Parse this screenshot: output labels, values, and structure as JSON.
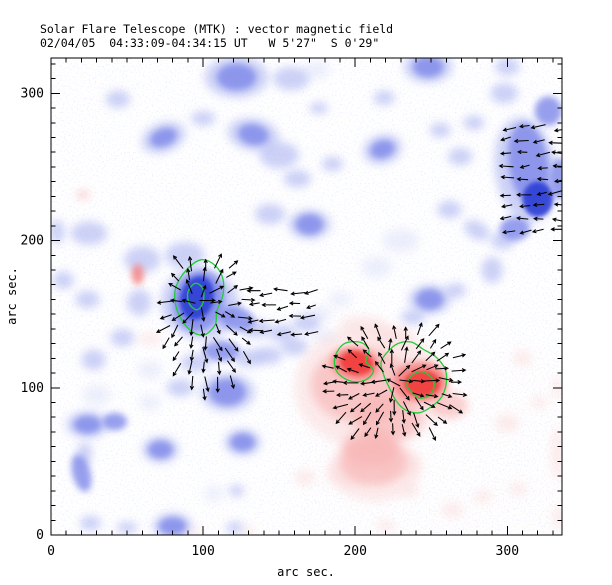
{
  "title": {
    "line1": "Solar Flare Telescope (MTK) : vector magnetic field",
    "line2": "02/04/05  04:33:09-04:34:15 UT   W 5'27\"  S 0'29\""
  },
  "axes": {
    "xlabel": "arc sec.",
    "ylabel": "arc sec.",
    "xticks": [
      0,
      100,
      200,
      300
    ],
    "yticks": [
      0,
      100,
      200,
      300
    ],
    "xlim": [
      0,
      336
    ],
    "ylim": [
      0,
      324
    ],
    "minor_tick_step": 10,
    "major_tick_step": 100
  },
  "palette": {
    "background": "#ffffff",
    "axis": "#000000",
    "contour_green": "#22cc38",
    "vector_black": "#000000",
    "blue": {
      "1": "#dde1f9",
      "2": "#aeb6f1",
      "3": "#7e88e9",
      "4": "#2f3fd5"
    },
    "red": {
      "1": "#fbdada",
      "2": "#f8b2b2",
      "3": "#f47c7c",
      "4": "#f23c3c"
    },
    "opacity": {
      "1": 0.55,
      "2": 0.62,
      "3": 0.8,
      "4": 0.92
    }
  },
  "chart_data": {
    "type": "heatmap",
    "description": "vector magnetogram: blue and red field patches, green contours around strong-field cores, black transverse-field vectors",
    "units": "arcsec",
    "tone_scale": "1=faint 2=light 3=medium 4=core",
    "blue_regions": [
      [
        122,
        311,
        13,
        9,
        0,
        3
      ],
      [
        122,
        311,
        21,
        14,
        0,
        2
      ],
      [
        44,
        296,
        8,
        6,
        0,
        2
      ],
      [
        74,
        270,
        9,
        6,
        20,
        3
      ],
      [
        74,
        270,
        15,
        10,
        20,
        2
      ],
      [
        133,
        272,
        10,
        7,
        -10,
        3
      ],
      [
        133,
        272,
        17,
        11,
        -10,
        2
      ],
      [
        100,
        283,
        8,
        5,
        0,
        2
      ],
      [
        150,
        258,
        13,
        9,
        0,
        2
      ],
      [
        162,
        242,
        9,
        6,
        0,
        2
      ],
      [
        144,
        218,
        10,
        7,
        0,
        2
      ],
      [
        170,
        211,
        9,
        7,
        0,
        3
      ],
      [
        170,
        211,
        14,
        10,
        0,
        2
      ],
      [
        185,
        252,
        7,
        5,
        0,
        2
      ],
      [
        218,
        262,
        8,
        6,
        15,
        3
      ],
      [
        218,
        262,
        13,
        10,
        15,
        2
      ],
      [
        248,
        318,
        10,
        7,
        0,
        3
      ],
      [
        248,
        318,
        16,
        11,
        0,
        2
      ],
      [
        219,
        297,
        7,
        5,
        0,
        2
      ],
      [
        176,
        290,
        6,
        4,
        0,
        2
      ],
      [
        158,
        310,
        12,
        8,
        0,
        2
      ],
      [
        175,
        316,
        8,
        6,
        0,
        1
      ],
      [
        256,
        275,
        7,
        5,
        0,
        2
      ],
      [
        278,
        280,
        7,
        5,
        0,
        2
      ],
      [
        300,
        318,
        8,
        6,
        0,
        2
      ],
      [
        314,
        252,
        13,
        28,
        8,
        3
      ],
      [
        312,
        248,
        20,
        36,
        8,
        2
      ],
      [
        320,
        228,
        10,
        12,
        0,
        4
      ],
      [
        327,
        288,
        9,
        10,
        0,
        3
      ],
      [
        305,
        208,
        10,
        8,
        0,
        3
      ],
      [
        334,
        242,
        6,
        14,
        0,
        3
      ],
      [
        298,
        300,
        9,
        7,
        0,
        2
      ],
      [
        290,
        180,
        7,
        9,
        0,
        2
      ],
      [
        269,
        257,
        8,
        6,
        0,
        2
      ],
      [
        262,
        221,
        8,
        6,
        0,
        2
      ],
      [
        280,
        207,
        9,
        6,
        -30,
        2
      ],
      [
        297,
        200,
        8,
        6,
        0,
        2
      ],
      [
        25,
        205,
        12,
        8,
        0,
        2
      ],
      [
        4,
        206,
        5,
        8,
        0,
        2
      ],
      [
        60,
        187,
        12,
        9,
        0,
        2
      ],
      [
        88,
        190,
        13,
        9,
        0,
        2
      ],
      [
        8,
        173,
        7,
        6,
        0,
        2
      ],
      [
        24,
        160,
        8,
        6,
        0,
        2
      ],
      [
        58,
        158,
        8,
        9,
        0,
        2
      ],
      [
        47,
        134,
        8,
        6,
        0,
        2
      ],
      [
        28,
        119,
        8,
        7,
        0,
        2
      ],
      [
        30,
        95,
        9,
        7,
        0,
        1
      ],
      [
        65,
        112,
        8,
        6,
        0,
        1
      ],
      [
        65,
        90,
        7,
        5,
        0,
        1
      ],
      [
        98,
        157,
        26,
        24,
        -15,
        2
      ],
      [
        97,
        159,
        17,
        21,
        -15,
        3
      ],
      [
        96,
        161,
        11,
        15,
        -15,
        4
      ],
      [
        122,
        147,
        12,
        8,
        -15,
        3
      ],
      [
        135,
        140,
        10,
        6,
        0,
        2
      ],
      [
        152,
        137,
        9,
        6,
        0,
        2
      ],
      [
        168,
        144,
        9,
        6,
        0,
        2
      ],
      [
        112,
        125,
        12,
        7,
        0,
        3
      ],
      [
        95,
        117,
        10,
        6,
        0,
        2
      ],
      [
        130,
        120,
        10,
        6,
        0,
        2
      ],
      [
        143,
        122,
        9,
        6,
        0,
        2
      ],
      [
        160,
        128,
        9,
        6,
        0,
        2
      ],
      [
        177,
        150,
        8,
        5,
        0,
        1
      ],
      [
        190,
        160,
        7,
        5,
        0,
        1
      ],
      [
        180,
        135,
        8,
        5,
        0,
        1
      ],
      [
        214,
        182,
        10,
        7,
        0,
        1
      ],
      [
        230,
        200,
        12,
        8,
        0,
        1
      ],
      [
        249,
        160,
        9,
        7,
        0,
        3
      ],
      [
        249,
        160,
        14,
        10,
        0,
        2
      ],
      [
        266,
        166,
        7,
        5,
        0,
        2
      ],
      [
        238,
        148,
        8,
        5,
        0,
        2
      ],
      [
        24,
        75,
        9,
        6,
        0,
        3
      ],
      [
        24,
        75,
        14,
        9,
        0,
        2
      ],
      [
        42,
        77,
        8,
        6,
        0,
        3
      ],
      [
        20,
        42,
        6,
        13,
        15,
        3
      ],
      [
        22,
        55,
        5,
        8,
        0,
        2
      ],
      [
        72,
        58,
        8,
        6,
        0,
        3
      ],
      [
        72,
        58,
        12,
        9,
        0,
        2
      ],
      [
        85,
        100,
        9,
        6,
        0,
        2
      ],
      [
        116,
        97,
        12,
        9,
        0,
        3
      ],
      [
        116,
        97,
        18,
        13,
        0,
        2
      ],
      [
        126,
        63,
        8,
        6,
        0,
        3
      ],
      [
        126,
        63,
        12,
        9,
        0,
        2
      ],
      [
        122,
        30,
        5,
        4,
        0,
        2
      ],
      [
        80,
        6,
        9,
        6,
        0,
        3
      ],
      [
        80,
        6,
        13,
        9,
        0,
        2
      ],
      [
        121,
        5,
        6,
        4,
        0,
        2
      ],
      [
        26,
        8,
        7,
        5,
        0,
        2
      ],
      [
        50,
        5,
        7,
        4,
        0,
        2
      ],
      [
        107,
        28,
        6,
        5,
        0,
        1
      ]
    ],
    "red_regions": [
      [
        210,
        100,
        50,
        42,
        0,
        1
      ],
      [
        213,
        45,
        30,
        22,
        0,
        1
      ],
      [
        204,
        102,
        33,
        26,
        0,
        2
      ],
      [
        212,
        50,
        22,
        16,
        0,
        2
      ],
      [
        200,
        116,
        16,
        11,
        -10,
        3
      ],
      [
        201,
        117,
        11,
        8,
        -10,
        4
      ],
      [
        243,
        104,
        18,
        14,
        0,
        3
      ],
      [
        244,
        103,
        12,
        9,
        0,
        4
      ],
      [
        222,
        80,
        22,
        16,
        0,
        2
      ],
      [
        210,
        60,
        18,
        13,
        0,
        2
      ],
      [
        262,
        88,
        12,
        9,
        0,
        2
      ],
      [
        196,
        42,
        14,
        9,
        0,
        1
      ],
      [
        228,
        48,
        15,
        9,
        0,
        1
      ],
      [
        205,
        142,
        16,
        7,
        0,
        1
      ],
      [
        225,
        136,
        13,
        6,
        0,
        1
      ],
      [
        167,
        39,
        7,
        5,
        0,
        1
      ],
      [
        218,
        39,
        6,
        4,
        0,
        1
      ],
      [
        236,
        30,
        6,
        4,
        0,
        1
      ],
      [
        264,
        17,
        7,
        5,
        0,
        1
      ],
      [
        284,
        26,
        6,
        4,
        0,
        1
      ],
      [
        300,
        76,
        8,
        6,
        0,
        1
      ],
      [
        307,
        31,
        6,
        4,
        0,
        1
      ],
      [
        220,
        6,
        6,
        4,
        0,
        1
      ],
      [
        333,
        55,
        4,
        18,
        0,
        1
      ],
      [
        334,
        12,
        4,
        8,
        0,
        1
      ],
      [
        333,
        100,
        3,
        8,
        0,
        1
      ],
      [
        310,
        120,
        6,
        5,
        0,
        1
      ],
      [
        321,
        90,
        5,
        4,
        0,
        1
      ],
      [
        57,
        177,
        4,
        7,
        0,
        3
      ],
      [
        21,
        231,
        4,
        3,
        0,
        2
      ],
      [
        65,
        133,
        8,
        4,
        0,
        1
      ],
      [
        95,
        2,
        5,
        3,
        0,
        1
      ],
      [
        130,
        2,
        5,
        3,
        0,
        1
      ]
    ],
    "green_contours": [
      {
        "points": [
          [
            99,
            187
          ],
          [
            108,
            183
          ],
          [
            113,
            174
          ],
          [
            113,
            163
          ],
          [
            109,
            152
          ],
          [
            108,
            143
          ],
          [
            101,
            136
          ],
          [
            93,
            138
          ],
          [
            86,
            146
          ],
          [
            82,
            156
          ],
          [
            82,
            168
          ],
          [
            89,
            180
          ]
        ]
      },
      {
        "points": [
          [
            95,
            171
          ],
          [
            100,
            167
          ],
          [
            100,
            158
          ],
          [
            96,
            153
          ],
          [
            91,
            157
          ],
          [
            90,
            165
          ]
        ]
      },
      {
        "points": [
          [
            193,
            130
          ],
          [
            203,
            131
          ],
          [
            209,
            126
          ],
          [
            207,
            118
          ],
          [
            212,
            112
          ],
          [
            208,
            106
          ],
          [
            200,
            104
          ],
          [
            192,
            107
          ],
          [
            187,
            113
          ],
          [
            187,
            122
          ]
        ]
      },
      {
        "points": [
          [
            221,
            124
          ],
          [
            228,
            130
          ],
          [
            237,
            131
          ],
          [
            245,
            126
          ],
          [
            253,
            121
          ],
          [
            259,
            113
          ],
          [
            260,
            104
          ],
          [
            257,
            94
          ],
          [
            250,
            87
          ],
          [
            242,
            83
          ],
          [
            233,
            85
          ],
          [
            227,
            91
          ],
          [
            223,
            99
          ],
          [
            219,
            108
          ],
          [
            217,
            117
          ]
        ]
      },
      {
        "points": [
          [
            237,
            108
          ],
          [
            243,
            111
          ],
          [
            249,
            108
          ],
          [
            252,
            102
          ],
          [
            249,
            95
          ],
          [
            242,
            93
          ],
          [
            237,
            97
          ],
          [
            234,
            102
          ]
        ]
      }
    ],
    "vector_clusters": [
      {
        "name": "negative-spot",
        "mode": "radial",
        "cx": 98,
        "cy": 158,
        "x0": 74,
        "x1": 132,
        "y0": 95,
        "y1": 192,
        "step": 9,
        "stepy": 9,
        "ex": 102,
        "ey": 145,
        "erx": 31,
        "ery": 51,
        "jitter": 14,
        "len": 13,
        "seed": 11
      },
      {
        "name": "central-band",
        "mode": "uniform",
        "angle": 185,
        "x0": 134,
        "x1": 178,
        "y0": 138,
        "y1": 165,
        "step": 9,
        "stepy": 9,
        "jitter": 14,
        "len": 12,
        "seed": 5
      },
      {
        "name": "positive-region",
        "mode": "radial",
        "cx": 226,
        "cy": 104,
        "x0": 182,
        "x1": 274,
        "y0": 62,
        "y1": 140,
        "step": 8.5,
        "stepy": 8.5,
        "ex": 227,
        "ey": 103,
        "erx": 47,
        "ery": 41,
        "jitter": 14,
        "len": 13,
        "seed": 23
      },
      {
        "name": "northeast-spot",
        "mode": "uniform",
        "angle": 183,
        "x0": 300,
        "x1": 333,
        "y0": 206,
        "y1": 285,
        "step": 11,
        "stepy": 8.8,
        "jitter": 16,
        "len": 12,
        "seed": 41
      }
    ]
  }
}
